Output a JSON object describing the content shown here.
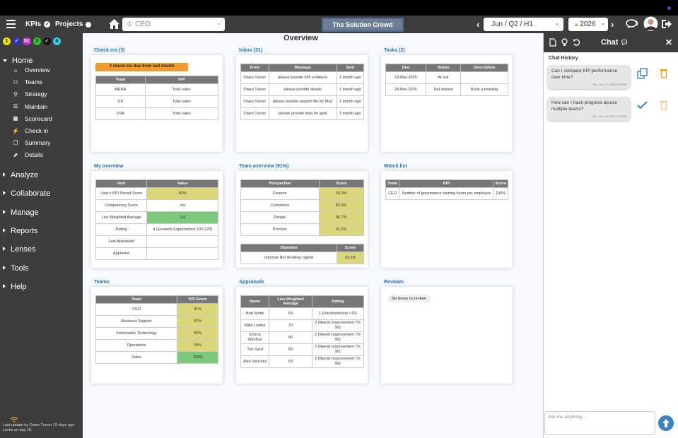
{
  "header": {
    "kpis_label": "KPIs",
    "projects_label": "Projects",
    "context_select": "CEO",
    "context_prefix": "①",
    "org_name": "The Solution Crowd",
    "period_select": "Jun / Q2 / H1",
    "year_select": "2026"
  },
  "sidebar": {
    "chips": [
      {
        "label": "1",
        "color": "#f5e200",
        "text": "#000"
      },
      {
        "label": "✓",
        "color": "#2f2fd0",
        "text": "#fff"
      },
      {
        "label": "51",
        "color": "#c12fd1",
        "text": "#fff"
      },
      {
        "label": "3",
        "color": "#2fbf35",
        "text": "#000"
      },
      {
        "label": "✓",
        "color": "#111",
        "text": "#fff"
      },
      {
        "label": "4",
        "color": "#35d0e8",
        "text": "#000"
      }
    ],
    "home_label": "Home",
    "home_items": [
      "Overview",
      "Teams",
      "Strategy",
      "Maintain",
      "Scorecard",
      "Check in",
      "Summary",
      "Details"
    ],
    "sections": [
      "Analyze",
      "Collaborate",
      "Manage",
      "Reports",
      "Lenses",
      "Tools",
      "Help"
    ],
    "last_update": "Last update by Owen Turner 19 days ago. Locks on day 10."
  },
  "main": {
    "title": "Overview",
    "checkins": {
      "heading": "Check ins (3)",
      "due_badge": "3 check ins due from last month",
      "cols": [
        "Team",
        "KPI"
      ],
      "rows": [
        [
          "MENA",
          "Total sales"
        ],
        [
          "UK",
          "Total sales"
        ],
        [
          "USA",
          "Total sales"
        ]
      ]
    },
    "inbox": {
      "heading": "Inbox (31)",
      "cols": [
        "From",
        "Message",
        "Sent"
      ],
      "rows": [
        [
          "Owen Turner",
          "please provide KPI evidence",
          "1 month ago"
        ],
        [
          "Owen Turner",
          "please provide details",
          "1 month ago"
        ],
        [
          "Owen Turner",
          "please provide support file for May",
          "1 month ago"
        ],
        [
          "Owen Turner",
          "please provide data for april",
          "1 month ago"
        ]
      ]
    },
    "tasks": {
      "heading": "Tasks (2)",
      "cols": [
        "Due",
        "Status",
        "Description"
      ],
      "rows": [
        [
          "19-Mar-2025",
          "At risk",
          ""
        ],
        [
          "28-Nov-2025",
          "Not started",
          "Book a meeting"
        ]
      ]
    },
    "myoverview": {
      "heading": "My overview",
      "cols": [
        "Item",
        "Value"
      ],
      "rows": [
        [
          "User's KPI Period Score",
          "82%"
        ],
        [
          "Competency Score",
          "n/a"
        ],
        [
          "Live Weighted Average",
          "110"
        ],
        [
          "Rating",
          "4 (Exceeds Expectations 100-120)"
        ],
        [
          "Last Appraised",
          ""
        ],
        [
          "Appraisor",
          ""
        ]
      ]
    },
    "teamoverview": {
      "heading": "Team overview (91%)",
      "cols": [
        "Perspective",
        "Score"
      ],
      "rows": [
        [
          "Finance",
          "93.3%"
        ],
        [
          "Customers",
          "82.9%"
        ],
        [
          "People",
          "96.7%"
        ],
        [
          "Process",
          "91.5%"
        ]
      ],
      "obj_cols": [
        "Objective",
        "Score"
      ],
      "obj_rows": [
        [
          "Improve Net Working capital",
          "93.3%"
        ]
      ]
    },
    "watchlist": {
      "heading": "Watch list",
      "cols": [
        "Team",
        "KPI",
        "Score"
      ],
      "rows": [
        [
          "CEO",
          "Number of governance training hours per employee",
          "100%"
        ]
      ]
    },
    "teams": {
      "heading": "Teams",
      "cols": [
        "Team",
        "KPI Score"
      ],
      "rows": [
        [
          "CEO",
          "91%"
        ],
        [
          "Business Support",
          "97%"
        ],
        [
          "Information Technology",
          "92%"
        ],
        [
          "Operations",
          "93%"
        ],
        [
          "Sales",
          "103%"
        ]
      ]
    },
    "appraisals": {
      "heading": "Appraisals",
      "cols": [
        "Name",
        "Live Weighted Average",
        "Rating"
      ],
      "rows": [
        [
          "Bob Smith",
          "65",
          "1 (Unsatisfactory <70)"
        ],
        [
          "Mike Lastes",
          "70",
          "2 (Needs Improvement 70-90)"
        ],
        [
          "Emma Windsor",
          "80",
          "2 (Needs Improvement 70-90)"
        ],
        [
          "Tim Gard",
          "80",
          "2 (Needs Improvement 70-90)"
        ],
        [
          "Alex Sanchez",
          "83",
          "2 (Needs Improvement 70-90)"
        ]
      ]
    },
    "reviews": {
      "heading": "Reviews",
      "empty": "No items to review"
    }
  },
  "chat": {
    "title": "Chat",
    "history_label": "Chat History",
    "messages": [
      {
        "text": "Can I compare KPI performance over time?",
        "time": "Tue, Jun 23, 2026 7:00 PM"
      },
      {
        "text": "How can I track progress across multiple teams?",
        "time": "Tue, Jun 23, 2026 7:15 PM"
      }
    ],
    "input_placeholder": "Ask me anything..."
  }
}
